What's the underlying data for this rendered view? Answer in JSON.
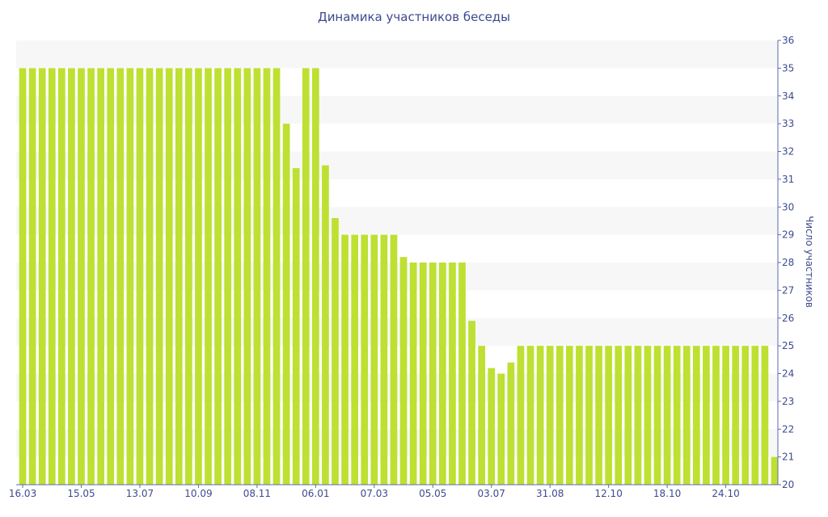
{
  "chart_data": {
    "type": "bar",
    "title": "Динамика участников беседы",
    "xlabel": "",
    "ylabel": "Число участников",
    "ylim": [
      20,
      36
    ],
    "yticks": [
      20,
      21,
      22,
      23,
      24,
      25,
      26,
      27,
      28,
      29,
      30,
      31,
      32,
      33,
      34,
      35,
      36
    ],
    "y_axis_side": "right",
    "grid": "alternating horizontal bands",
    "x_tick_labels": [
      {
        "index": 0,
        "label": "16.03"
      },
      {
        "index": 6,
        "label": "15.05"
      },
      {
        "index": 12,
        "label": "13.07"
      },
      {
        "index": 18,
        "label": "10.09"
      },
      {
        "index": 24,
        "label": "08.11"
      },
      {
        "index": 30,
        "label": "06.01"
      },
      {
        "index": 36,
        "label": "07.03"
      },
      {
        "index": 42,
        "label": "05.05"
      },
      {
        "index": 48,
        "label": "03.07"
      },
      {
        "index": 54,
        "label": "31.08"
      },
      {
        "index": 60,
        "label": "12.10"
      },
      {
        "index": 66,
        "label": "18.10"
      },
      {
        "index": 72,
        "label": "24.10"
      }
    ],
    "values": [
      35,
      35,
      35,
      35,
      35,
      35,
      35,
      35,
      35,
      35,
      35,
      35,
      35,
      35,
      35,
      35,
      35,
      35,
      35,
      35,
      35,
      35,
      35,
      35,
      35,
      35,
      35,
      33,
      31.4,
      35,
      35,
      31.5,
      29.6,
      29,
      29,
      29,
      29,
      29,
      29,
      28.2,
      28,
      28,
      28,
      28,
      28,
      28,
      25.9,
      25,
      24.2,
      24,
      24.4,
      25,
      25,
      25,
      25,
      25,
      25,
      25,
      25,
      25,
      25,
      25,
      25,
      25,
      25,
      25,
      25,
      25,
      25,
      25,
      25,
      25,
      25,
      25,
      25,
      25,
      25,
      21
    ],
    "colors": {
      "bar": "#bde032",
      "band": "#f7f7f7",
      "axis": "#5a6ab3",
      "text": "#3d4a8f"
    }
  }
}
